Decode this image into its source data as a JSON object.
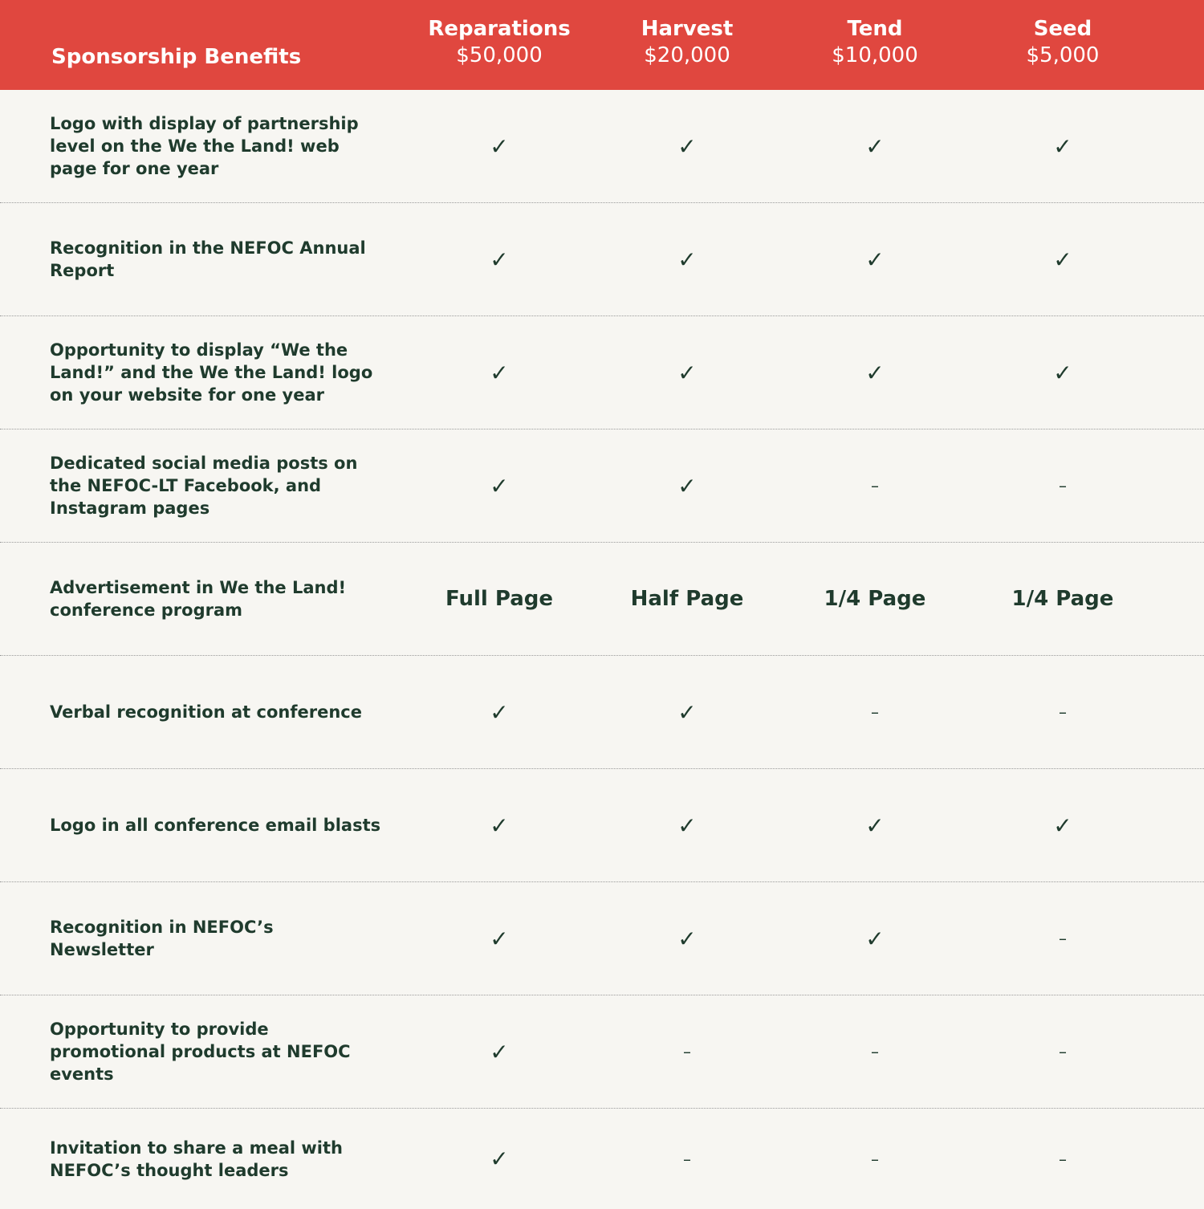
{
  "header": {
    "title": "Sponsorship Benefits",
    "columns": [
      {
        "name": "Reparations",
        "price": "$50,000"
      },
      {
        "name": "Harvest",
        "price": "$20,000"
      },
      {
        "name": "Tend",
        "price": "$10,000"
      },
      {
        "name": "Seed",
        "price": "$5,000"
      }
    ]
  },
  "table": {
    "rows": [
      {
        "benefit": "Logo with display of partnership level on the We the Land! web page for one year",
        "cells": [
          "✓",
          "✓",
          "✓",
          "✓"
        ]
      },
      {
        "benefit": "Recognition in the NEFOC Annual Report",
        "cells": [
          "✓",
          "✓",
          "✓",
          "✓"
        ]
      },
      {
        "benefit": "Opportunity to display “We the Land!” and the We the Land! logo on your website for one year",
        "cells": [
          "✓",
          "✓",
          "✓",
          "✓"
        ]
      },
      {
        "benefit": "Dedicated social media posts on the NEFOC-LT Facebook, and Instagram pages",
        "cells": [
          "✓",
          "✓",
          "–",
          "–"
        ]
      },
      {
        "benefit": "Advertisement in We the Land! conference program",
        "cells": [
          "Full Page",
          "Half Page",
          "1/4 Page",
          "1/4 Page"
        ]
      },
      {
        "benefit": "Verbal recognition at conference",
        "cells": [
          "✓",
          "✓",
          "–",
          "–"
        ]
      },
      {
        "benefit": "Logo in all conference email blasts",
        "cells": [
          "✓",
          "✓",
          "✓",
          "✓"
        ]
      },
      {
        "benefit": "Recognition in NEFOC’s Newsletter",
        "cells": [
          "✓",
          "✓",
          "✓",
          "–"
        ]
      },
      {
        "benefit": "Opportunity to provide promotional products at NEFOC events",
        "cells": [
          "✓",
          "–",
          "–",
          "–"
        ]
      },
      {
        "benefit": "Invitation to share a meal with NEFOC’s thought leaders",
        "cells": [
          "✓",
          "–",
          "–",
          "–"
        ]
      }
    ]
  }
}
